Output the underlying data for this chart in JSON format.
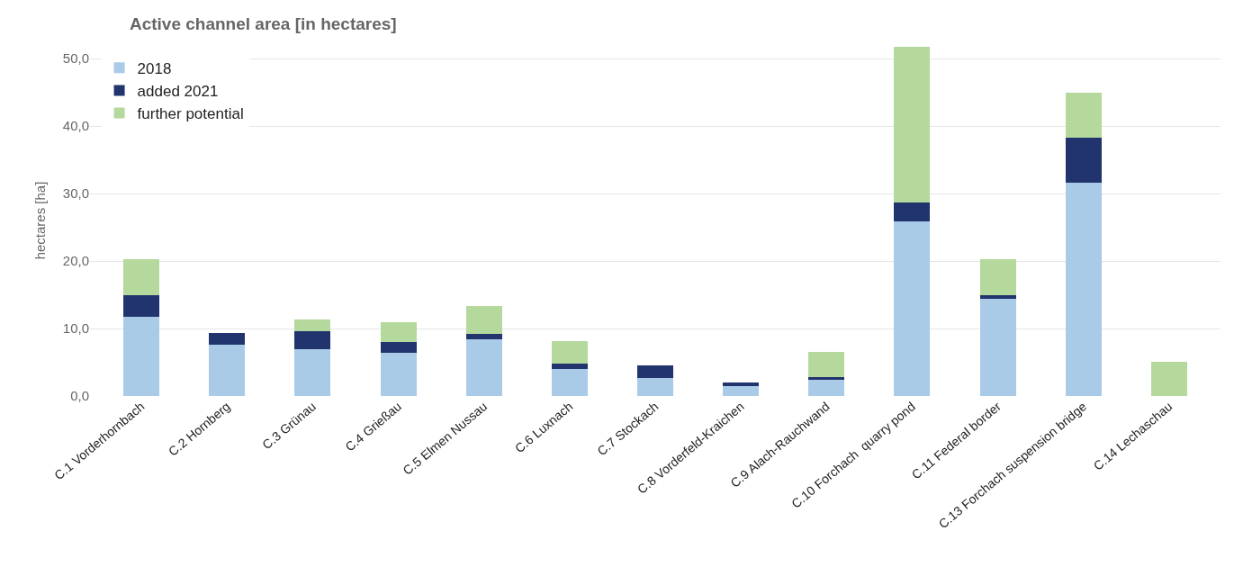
{
  "chart_data": {
    "type": "bar",
    "title": "Active channel area [in hectares]",
    "ylabel": "hectares [ha]",
    "stacked": true,
    "categories": [
      "C.1 Vorderhornbach",
      "C.2 Hornberg",
      "C.3 Grünau",
      "C.4 Grießau",
      "C.5 Elmen Nussau",
      "C.6 Luxnach",
      "C.7 Stockach",
      "C.8 Vorderfeld-Kraichen",
      "C.9 Alach-Rauchwand",
      "C.10 Forchach  quarry pond",
      "C.11 Federal border",
      "C.13 Forchach suspension bridge",
      "C.14 Lechaschau"
    ],
    "series": [
      {
        "name": "2018",
        "color": "#a9cbe8",
        "values": [
          11.8,
          7.6,
          7.0,
          6.4,
          8.4,
          4.0,
          2.7,
          1.5,
          2.4,
          25.9,
          14.4,
          31.6,
          0
        ]
      },
      {
        "name": "added 2021",
        "color": "#22346e",
        "values": [
          3.2,
          1.8,
          2.6,
          1.6,
          0.8,
          0.8,
          1.8,
          0.5,
          0.4,
          2.8,
          0.6,
          6.7,
          0
        ]
      },
      {
        "name": "further potential",
        "color": "#b5d89d",
        "values": [
          5.3,
          0,
          1.7,
          2.9,
          4.1,
          3.4,
          0,
          0,
          3.7,
          23.0,
          5.3,
          6.6,
          5.1
        ]
      }
    ],
    "ylim": [
      0,
      52
    ],
    "yticks": [
      {
        "value": 0,
        "label": "0,0"
      },
      {
        "value": 10,
        "label": "10,0"
      },
      {
        "value": 20,
        "label": "20,0"
      },
      {
        "value": 30,
        "label": "30,0"
      },
      {
        "value": 40,
        "label": "40,0"
      },
      {
        "value": 50,
        "label": "50,0"
      }
    ],
    "grid": "y",
    "legend": "top left"
  }
}
